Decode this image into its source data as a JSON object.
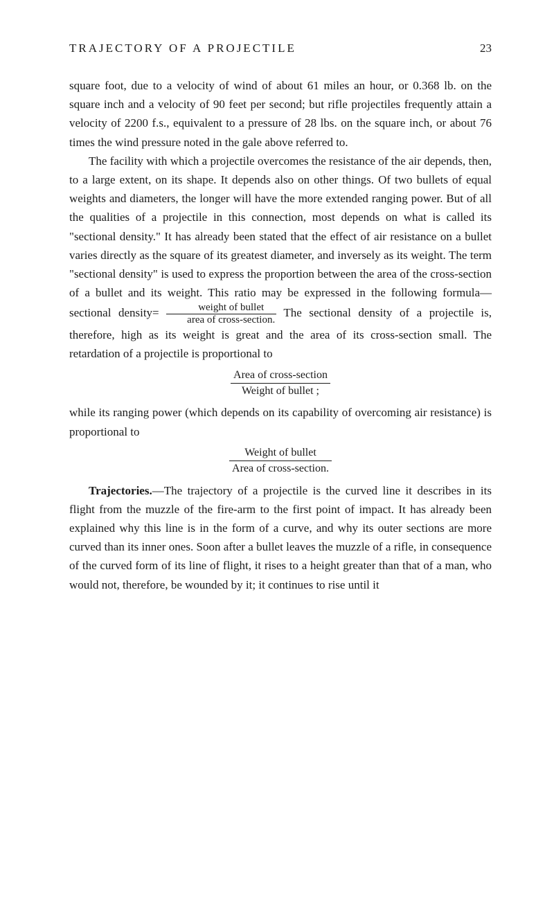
{
  "header": {
    "running_title": "TRAJECTORY OF A PROJECTILE",
    "page_number": "23"
  },
  "paragraphs": {
    "p1": "square foot, due to a velocity of wind of about 61 miles an hour, or 0.368 lb. on the square inch and a velocity of 90 feet per second; but rifle projectiles frequently attain a velocity of 2200 f.s., equivalent to a pressure of 28 lbs. on the square inch, or about 76 times the wind pressure noted in the gale above referred to.",
    "p2_before_fraction": "The facility with which a projectile overcomes the resistance of the air depends, then, to a large extent, on its shape. It depends also on other things. Of two bullets of equal weights and diameters, the longer will have the more extended ranging power. But of all the qualities of a projectile in this connection, most depends on what is called its \"sectional density.\" It has already been stated that the effect of air resistance on a bullet varies directly as the square of its greatest diameter, and inversely as its weight. The term \"sectional density\" is used to express the proportion between the area of the cross-section of a bullet and its weight. This ratio may be expressed in the following formula—sectional density=",
    "p2_frac_num": "weight of bullet",
    "p2_frac_den": "area of cross-section.",
    "p2_after_fraction": "The sectional density of a projectile is, therefore, high as its weight is great and the area of its cross-section small. The retardation of a projectile is proportional to",
    "formula1_num": "Area of cross-section",
    "formula1_den": "Weight of bullet ;",
    "p3": "while its ranging power (which depends on its capability of overcoming air resistance) is proportional to",
    "formula2_num": "Weight of bullet",
    "formula2_den": "Area of cross-section.",
    "p4_heading": "Trajectories.",
    "p4_body": "—The trajectory of a projectile is the curved line it describes in its flight from the muzzle of the fire-arm to the first point of impact. It has already been explained why this line is in the form of a curve, and why its outer sections are more curved than its inner ones. Soon after a bullet leaves the muzzle of a rifle, in consequence of the curved form of its line of flight, it rises to a height greater than that of a man, who would not, therefore, be wounded by it; it continues to rise until it"
  }
}
